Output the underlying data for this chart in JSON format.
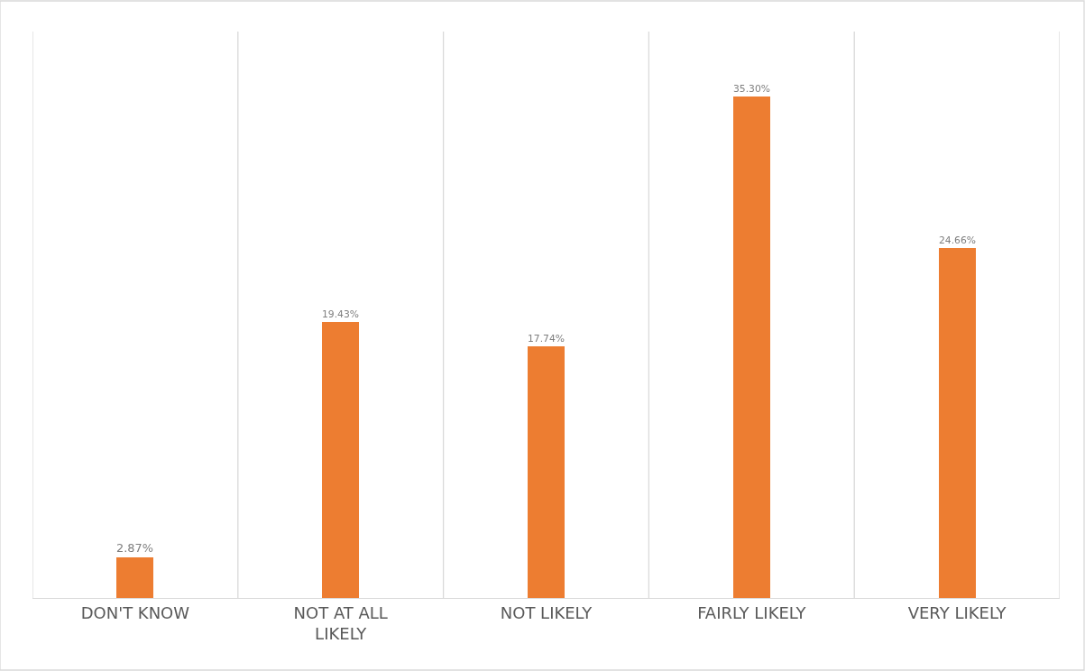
{
  "chart_data": {
    "type": "bar",
    "categories": [
      "DON'T KNOW",
      "NOT AT ALL LIKELY",
      "NOT LIKELY",
      "FAIRLY LIKELY",
      "VERY LIKELY"
    ],
    "values": [
      2.87,
      19.43,
      17.74,
      35.3,
      24.66
    ],
    "value_labels": [
      "2.87%",
      "19.43%",
      "17.74%",
      "35.30%",
      "24.66%"
    ],
    "color": "#ed7d31",
    "grid": "x"
  }
}
